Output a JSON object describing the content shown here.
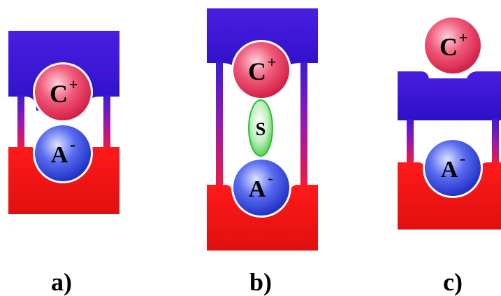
{
  "panels": [
    {
      "label": "a)",
      "cation": {
        "symbol": "C",
        "charge": "+"
      },
      "anion": {
        "symbol": "A",
        "charge": "-"
      }
    },
    {
      "label": "b)",
      "cation": {
        "symbol": "C",
        "charge": "+"
      },
      "solvent": {
        "symbol": "S"
      },
      "anion": {
        "symbol": "A",
        "charge": "-"
      }
    },
    {
      "label": "c)",
      "cation": {
        "symbol": "C",
        "charge": "+"
      },
      "anion": {
        "symbol": "A",
        "charge": "-"
      }
    }
  ],
  "colors": {
    "upper_block": "#3a1ad8",
    "lower_block": "#f01515",
    "cation_fill": "#e8355e",
    "anion_fill": "#2a3ed8",
    "solvent_fill": "#35c935"
  }
}
